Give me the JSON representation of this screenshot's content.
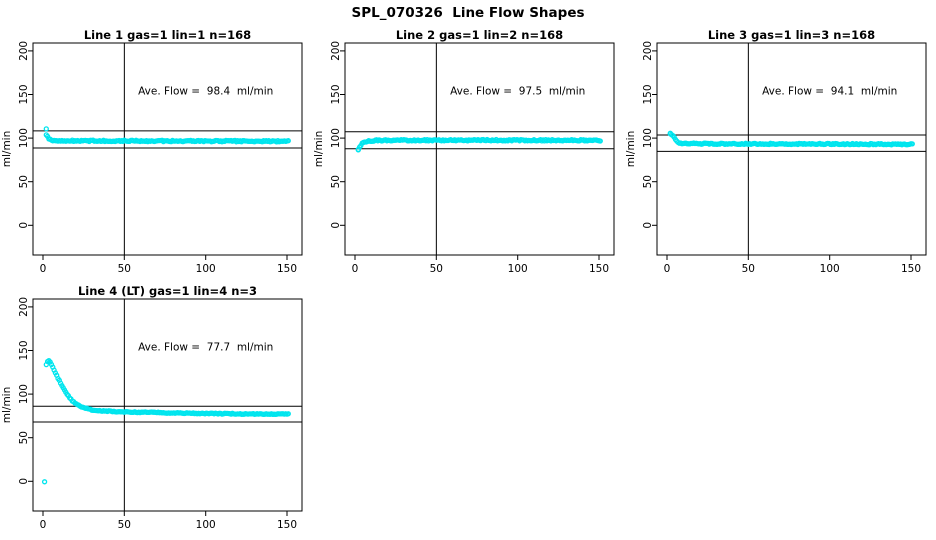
{
  "page": {
    "main_title": "SPL_070326  Line Flow Shapes"
  },
  "style": {
    "marker_color": "#00E5EE",
    "axis_color": "#000000",
    "background": "#FFFFFF"
  },
  "chart_data": [
    {
      "type": "scatter",
      "title": "Line 1 gas=1 lin=1 n=168",
      "n": 168,
      "ave_flow": 98.4,
      "annotation": {
        "text": "Ave. Flow =  98.4  ml/min",
        "x": 100,
        "y": 150
      },
      "ylabel": "ml/min",
      "xlim": [
        -6.15,
        159.2
      ],
      "ylim": [
        -34,
        209
      ],
      "xticks": [
        0,
        50,
        100,
        150
      ],
      "yticks": [
        0,
        50,
        100,
        150,
        200
      ],
      "vline_x": 50,
      "hlines": [
        108.3,
        88.7
      ],
      "outliers": [
        [
          2,
          110.5
        ]
      ],
      "profile": [
        [
          2,
          104
        ],
        [
          3,
          100.5
        ],
        [
          4,
          98.6
        ],
        [
          5,
          97.8
        ],
        [
          6,
          97.3
        ],
        [
          8,
          97.0
        ],
        [
          20,
          96.9
        ],
        [
          60,
          96.8
        ],
        [
          100,
          96.6
        ],
        [
          151,
          96.4
        ]
      ],
      "noise": 0.8,
      "sample_step": 0.8
    },
    {
      "type": "scatter",
      "title": "Line 2 gas=1 lin=2 n=168",
      "n": 168,
      "ave_flow": 97.5,
      "annotation": {
        "text": "Ave. Flow =  97.5  ml/min",
        "x": 100,
        "y": 150
      },
      "ylabel": "ml/min",
      "xlim": [
        -6.15,
        159.2
      ],
      "ylim": [
        -34,
        209
      ],
      "xticks": [
        0,
        50,
        100,
        150
      ],
      "yticks": [
        0,
        50,
        100,
        150,
        200
      ],
      "vline_x": 50,
      "hlines": [
        107.3,
        87.8
      ],
      "outliers": [
        [
          2,
          86.5
        ]
      ],
      "profile": [
        [
          2,
          87.3
        ],
        [
          2.7,
          89
        ],
        [
          3.5,
          92
        ],
        [
          4.5,
          94.5
        ],
        [
          6,
          96
        ],
        [
          8,
          96.8
        ],
        [
          12,
          97.2
        ],
        [
          30,
          97.5
        ],
        [
          80,
          97.6
        ],
        [
          151,
          97.5
        ]
      ],
      "noise": 0.8,
      "sample_step": 0.8
    },
    {
      "type": "scatter",
      "title": "Line 3 gas=1 lin=3 n=168",
      "n": 168,
      "ave_flow": 94.1,
      "annotation": {
        "text": "Ave. Flow =  94.1  ml/min",
        "x": 100,
        "y": 150
      },
      "ylabel": "ml/min",
      "xlim": [
        -6.15,
        159.2
      ],
      "ylim": [
        -34,
        209
      ],
      "xticks": [
        0,
        50,
        100,
        150
      ],
      "yticks": [
        0,
        50,
        100,
        150,
        200
      ],
      "vline_x": 50,
      "hlines": [
        103.5,
        84.7
      ],
      "outliers": [
        [
          2,
          105.5
        ]
      ],
      "profile": [
        [
          2,
          105
        ],
        [
          3,
          104.3
        ],
        [
          4,
          102
        ],
        [
          5,
          99
        ],
        [
          6,
          96.5
        ],
        [
          7,
          95
        ],
        [
          8,
          94.3
        ],
        [
          10,
          93.8
        ],
        [
          30,
          93.5
        ],
        [
          100,
          93.2
        ],
        [
          151,
          93
        ]
      ],
      "noise": 0.7,
      "sample_step": 0.8
    },
    {
      "type": "scatter",
      "title": "Line 4 (LT) gas=1 lin=4 n=3",
      "n": 3,
      "ave_flow": 77.7,
      "annotation": {
        "text": "Ave. Flow =  77.7  ml/min",
        "x": 100,
        "y": 150
      },
      "ylabel": "ml/min",
      "xlim": [
        -6.15,
        159.2
      ],
      "ylim": [
        -34,
        209
      ],
      "xticks": [
        0,
        50,
        100,
        150
      ],
      "yticks": [
        0,
        50,
        100,
        150,
        200
      ],
      "vline_x": 50,
      "hlines": [
        86,
        68
      ],
      "outliers": [
        [
          1,
          -0.5
        ]
      ],
      "profile": [
        [
          2,
          134
        ],
        [
          2.5,
          136.5
        ],
        [
          3,
          137.5
        ],
        [
          3.7,
          138
        ],
        [
          4.5,
          136.5
        ],
        [
          5,
          134.5
        ],
        [
          6,
          130.5
        ],
        [
          7,
          127
        ],
        [
          8,
          123
        ],
        [
          9,
          119
        ],
        [
          10,
          115.5
        ],
        [
          11,
          112
        ],
        [
          12,
          108.5
        ],
        [
          13,
          105.5
        ],
        [
          14,
          102.5
        ],
        [
          15,
          99.5
        ],
        [
          16,
          97
        ],
        [
          17,
          94.5
        ],
        [
          18,
          92.5
        ],
        [
          19,
          90.5
        ],
        [
          20,
          89
        ],
        [
          21,
          87.8
        ],
        [
          22,
          86.8
        ],
        [
          23,
          85.8
        ],
        [
          24,
          85
        ],
        [
          25,
          84.3
        ],
        [
          26,
          83.7
        ],
        [
          27,
          83.2
        ],
        [
          28,
          82.7
        ],
        [
          30,
          82
        ],
        [
          32,
          81.5
        ],
        [
          34,
          81.2
        ],
        [
          36,
          80.9
        ],
        [
          38,
          80.6
        ],
        [
          40,
          80.4
        ],
        [
          45,
          80
        ],
        [
          50,
          79.7
        ],
        [
          60,
          79.2
        ],
        [
          70,
          78.8
        ],
        [
          80,
          78.4
        ],
        [
          90,
          78.1
        ],
        [
          100,
          77.8
        ],
        [
          110,
          77.6
        ],
        [
          120,
          77.4
        ],
        [
          130,
          77.2
        ],
        [
          140,
          77.1
        ],
        [
          151,
          77
        ]
      ],
      "noise": 0.5,
      "sample_step": 0.8
    }
  ]
}
